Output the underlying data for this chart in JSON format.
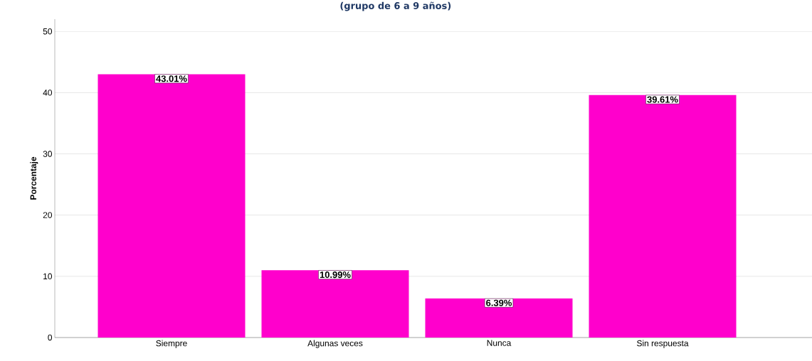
{
  "chart_data": {
    "type": "bar",
    "title": "(grupo de 6 a 9 años)",
    "ylabel": "Porcentaje",
    "categories": [
      "Siempre",
      "Algunas veces",
      "Nunca",
      "Sin respuesta"
    ],
    "values": [
      43.01,
      10.99,
      6.39,
      39.61
    ],
    "color": "#ff00cc",
    "value_labels": [
      "43.01%",
      "10.99%",
      "6.39%",
      "39.61%"
    ],
    "ylim": [
      0,
      52
    ],
    "yticks": [
      0,
      10,
      20,
      30,
      40,
      50
    ],
    "grid": "y"
  }
}
